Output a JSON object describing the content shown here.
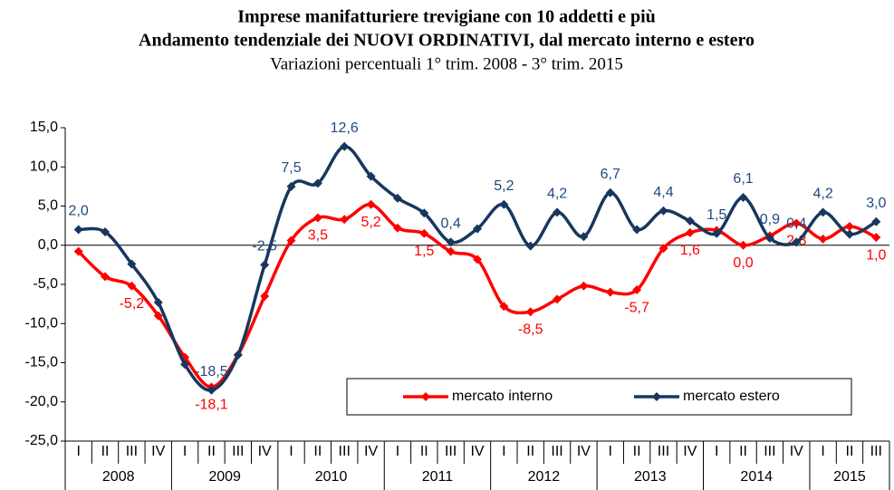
{
  "chart_data": {
    "type": "line",
    "title": "Imprese manifatturiere trevigiane con 10 addetti e più",
    "title_line2": "Andamento tendenziale dei NUOVI ORDINATIVI, dal mercato interno e estero",
    "subtitle": "Variazioni percentuali 1° trim. 2008 - 3° trim. 2015",
    "categories": [
      "I",
      "II",
      "III",
      "IV",
      "I",
      "II",
      "III",
      "IV",
      "I",
      "II",
      "III",
      "IV",
      "I",
      "II",
      "III",
      "IV",
      "I",
      "II",
      "III",
      "IV",
      "I",
      "II",
      "III",
      "IV",
      "I",
      "II",
      "III",
      "IV",
      "I",
      "II",
      "III"
    ],
    "categories_year": [
      "2008",
      null,
      null,
      null,
      "2009",
      null,
      null,
      null,
      "2010",
      null,
      null,
      null,
      "2011",
      null,
      null,
      null,
      "2012",
      null,
      null,
      null,
      "2013",
      null,
      null,
      null,
      "2014",
      null,
      null,
      null,
      "2015",
      null,
      null
    ],
    "series": [
      {
        "name": "mercato interno",
        "color": "#ff0000",
        "values": [
          -0.8,
          -4.0,
          -5.2,
          -9.0,
          -14.3,
          -18.1,
          -14.0,
          -6.5,
          0.6,
          3.5,
          3.3,
          5.2,
          2.2,
          1.5,
          -0.8,
          -1.8,
          -7.8,
          -8.5,
          -6.9,
          -5.2,
          -6.0,
          -5.7,
          -0.4,
          1.6,
          1.9,
          0.0,
          1.2,
          2.8,
          0.8,
          2.4,
          1.0
        ],
        "value_labels": [
          null,
          null,
          "-5,2",
          null,
          null,
          "-18,1",
          null,
          null,
          null,
          "3,5",
          null,
          "5,2",
          null,
          "1,5",
          null,
          null,
          null,
          "-8,5",
          null,
          null,
          null,
          "-5,7",
          null,
          "1,6",
          null,
          "0,0",
          null,
          "2,8",
          null,
          null,
          "1,0"
        ]
      },
      {
        "name": "mercato estero",
        "color": "#17375e",
        "values": [
          2.0,
          1.7,
          -2.4,
          -7.3,
          -15.2,
          -18.5,
          -14.0,
          -2.5,
          7.5,
          7.9,
          12.6,
          8.8,
          6.0,
          4.1,
          0.4,
          2.1,
          5.2,
          -0.1,
          4.2,
          1.1,
          6.7,
          2.0,
          4.4,
          3.1,
          1.5,
          6.1,
          0.9,
          0.4,
          4.2,
          1.4,
          3.0
        ],
        "value_labels": [
          "2,0",
          null,
          null,
          null,
          null,
          "-18,5",
          null,
          "-2,5",
          "7,5",
          null,
          "12,6",
          null,
          null,
          null,
          "0,4",
          null,
          "5,2",
          null,
          "4,2",
          null,
          "6,7",
          null,
          "4,4",
          null,
          "1,5",
          "6,1",
          "0,9",
          "0,4",
          "4,2",
          null,
          "3,0"
        ]
      }
    ],
    "ylim": [
      -25,
      15
    ],
    "yticks": [
      {
        "value": -25,
        "label": "-25,0"
      },
      {
        "value": -20,
        "label": "-20,0"
      },
      {
        "value": -15,
        "label": "-15,0"
      },
      {
        "value": -10,
        "label": "-10,0"
      },
      {
        "value": -5,
        "label": "-5,0"
      },
      {
        "value": 0,
        "label": "0,0"
      },
      {
        "value": 5,
        "label": "5,0"
      },
      {
        "value": 10,
        "label": "10,0"
      },
      {
        "value": 15,
        "label": "15,0"
      }
    ],
    "grid": false,
    "smooth": true
  }
}
